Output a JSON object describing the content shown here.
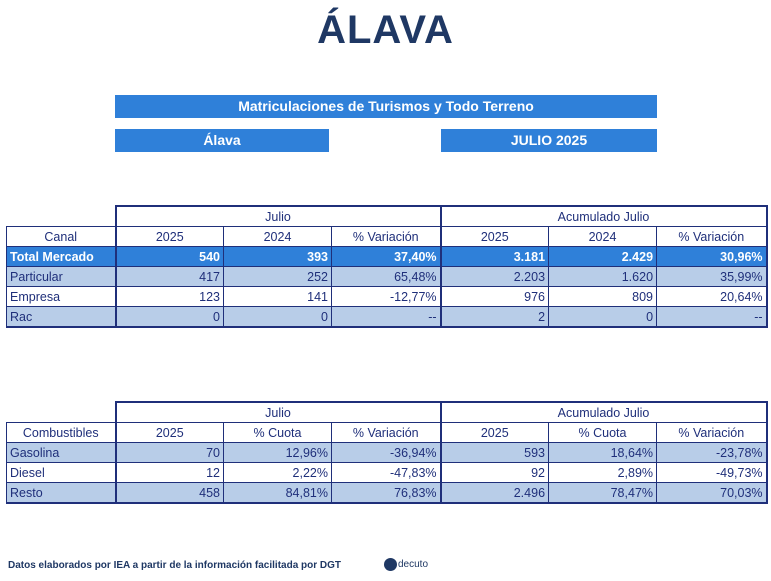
{
  "title": "ÁLAVA",
  "banner": "Matriculaciones de Turismos y Todo Terreno",
  "region_label": "Álava",
  "period_label": "JULIO 2025",
  "table1": {
    "group_left": "Julio",
    "group_right": "Acumulado Julio",
    "headers": [
      "Canal",
      "2025",
      "2024",
      "% Variación",
      "2025",
      "2024",
      "% Variación"
    ],
    "rows": [
      [
        "Total Mercado",
        "540",
        "393",
        "37,40%",
        "3.181",
        "2.429",
        "30,96%"
      ],
      [
        "Particular",
        "417",
        "252",
        "65,48%",
        "2.203",
        "1.620",
        "35,99%"
      ],
      [
        "Empresa",
        "123",
        "141",
        "-12,77%",
        "976",
        "809",
        "20,64%"
      ],
      [
        "Rac",
        "0",
        "0",
        "--",
        "2",
        "0",
        "--"
      ]
    ]
  },
  "table2": {
    "group_left": "Julio",
    "group_right": "Acumulado Julio",
    "headers": [
      "Combustibles",
      "2025",
      "% Cuota",
      "% Variación",
      "2025",
      "% Cuota",
      "% Variación"
    ],
    "rows": [
      [
        "Gasolina",
        "70",
        "12,96%",
        "-36,94%",
        "593",
        "18,64%",
        "-23,78%"
      ],
      [
        "Diesel",
        "12",
        "2,22%",
        "-47,83%",
        "92",
        "2,89%",
        "-49,73%"
      ],
      [
        "Resto",
        "458",
        "84,81%",
        "76,83%",
        "2.496",
        "78,47%",
        "70,03%"
      ]
    ]
  },
  "footer": "Datos elaborados por IEA a partir de la información facilitada por DGT",
  "logo_text": "decuto",
  "colors": {
    "title": "#1f3864",
    "bar": "#2f80d9",
    "shade": "#b8cde8",
    "grid": "#1f2f7a"
  }
}
